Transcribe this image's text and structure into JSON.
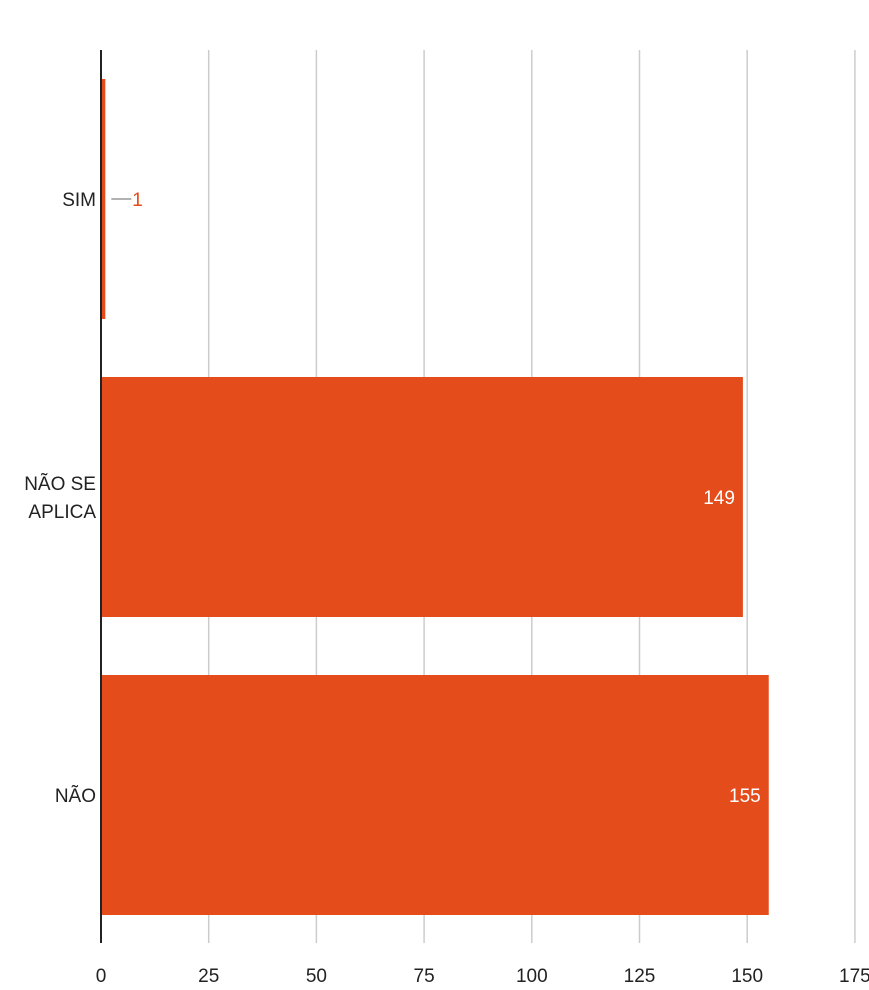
{
  "chart_data": {
    "type": "bar",
    "orientation": "horizontal",
    "categories": [
      [
        "SIM"
      ],
      [
        "NÃO SE",
        "APLICA"
      ],
      [
        "NÃO"
      ]
    ],
    "values": [
      1,
      149,
      155
    ],
    "value_labels": [
      "1",
      "149",
      "155"
    ],
    "x_ticks": [
      "0",
      "25",
      "50",
      "75",
      "100",
      "125",
      "150",
      "175"
    ],
    "xlim": [
      0,
      175
    ],
    "grid": "vertical",
    "legend": "none",
    "title": "",
    "xlabel": "",
    "ylabel": "",
    "bar_color": "#e44c1b"
  }
}
